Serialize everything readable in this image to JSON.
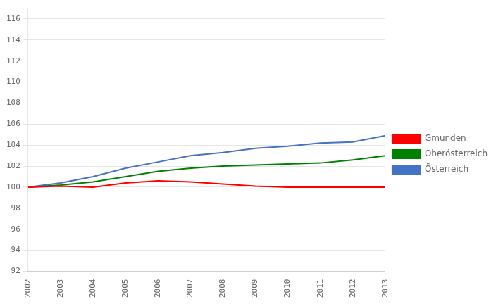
{
  "chart_data": {
    "type": "line",
    "x": [
      2002,
      2003,
      2004,
      2005,
      2006,
      2007,
      2008,
      2009,
      2010,
      2011,
      2012,
      2013
    ],
    "series": [
      {
        "name": "Gmunden",
        "color": "#FF0000",
        "values": [
          100.0,
          100.1,
          100.0,
          100.4,
          100.6,
          100.5,
          100.3,
          100.1,
          100.0,
          100.0,
          100.0,
          100.0
        ]
      },
      {
        "name": "Oberösterreich",
        "color": "#008000",
        "values": [
          100.0,
          100.2,
          100.5,
          101.0,
          101.5,
          101.8,
          102.0,
          102.1,
          102.2,
          102.3,
          102.6,
          103.0
        ]
      },
      {
        "name": "Österreich",
        "color": "#4472C4",
        "values": [
          100.0,
          100.4,
          101.0,
          101.8,
          102.4,
          103.0,
          103.3,
          103.7,
          103.9,
          104.2,
          104.3,
          104.9
        ]
      }
    ],
    "xlim": [
      2002,
      2013
    ],
    "xticks": [
      2002,
      2003,
      2004,
      2005,
      2006,
      2007,
      2008,
      2009,
      2010,
      2011,
      2012,
      2013
    ],
    "ylim": [
      92,
      117
    ],
    "yticks": [
      92,
      94,
      96,
      98,
      100,
      102,
      104,
      106,
      108,
      110,
      112,
      114,
      116
    ],
    "grid": "y",
    "legend": "right"
  }
}
